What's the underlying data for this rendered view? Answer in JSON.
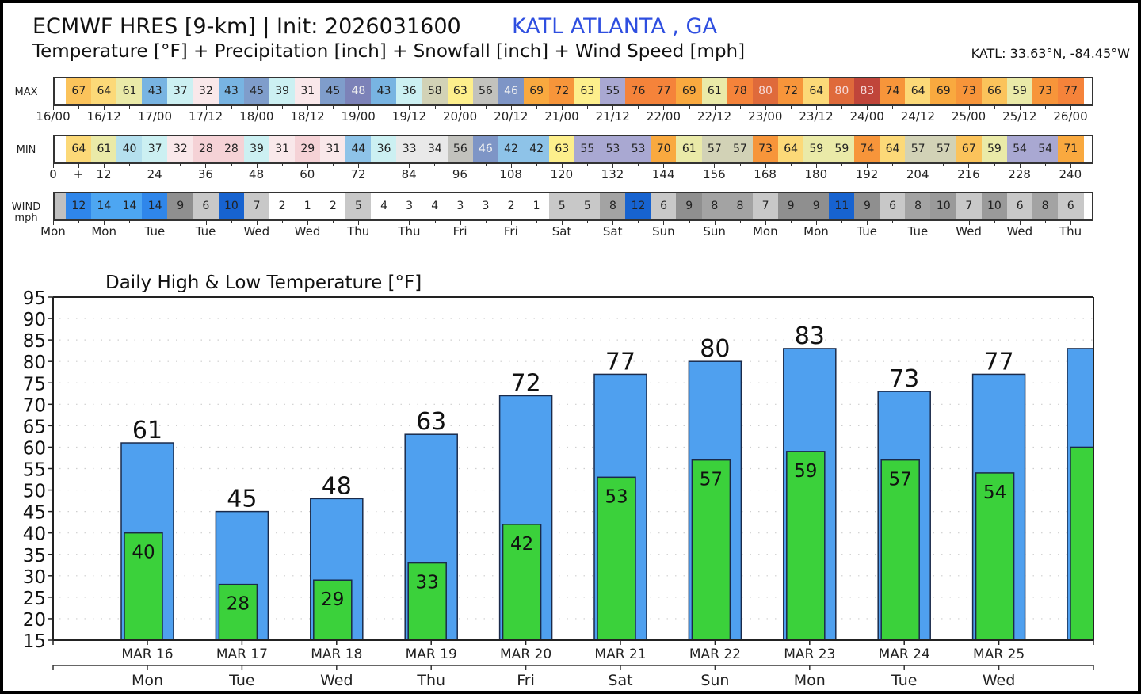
{
  "header": {
    "title": "ECMWF HRES [9-km] | Init: 2026031600",
    "location": "KATL ATLANTA      , GA",
    "subtitle": "Temperature [°F] + Precipitation [inch] + Snowfall [inch] + Wind Speed [mph]",
    "coords": "KATL: 33.63°N, -84.45°W",
    "location_color": "#2f4fe0"
  },
  "max_strip": {
    "label": "MAX",
    "values": [
      67,
      64,
      61,
      43,
      37,
      32,
      43,
      45,
      39,
      31,
      45,
      48,
      43,
      36,
      58,
      63,
      56,
      46,
      69,
      72,
      63,
      55,
      76,
      77,
      69,
      61,
      78,
      80,
      72,
      64,
      80,
      83,
      74,
      64,
      69,
      73,
      66,
      59,
      73,
      77
    ],
    "ticks": [
      "16/00",
      "16/12",
      "17/00",
      "17/12",
      "18/00",
      "18/12",
      "19/00",
      "19/12",
      "20/00",
      "20/12",
      "21/00",
      "21/12",
      "22/00",
      "22/12",
      "23/00",
      "23/12",
      "24/00",
      "24/12",
      "25/00",
      "25/12",
      "26/00"
    ]
  },
  "min_strip": {
    "label": "MIN",
    "values": [
      64,
      61,
      40,
      37,
      32,
      28,
      28,
      39,
      31,
      29,
      31,
      44,
      36,
      33,
      34,
      56,
      46,
      42,
      42,
      63,
      55,
      53,
      53,
      70,
      61,
      57,
      57,
      73,
      64,
      59,
      59,
      74,
      64,
      57,
      57,
      67,
      59,
      54,
      54,
      71
    ],
    "ticks": [
      "0",
      "+",
      "12",
      "24",
      "36",
      "48",
      "60",
      "72",
      "84",
      "96",
      "108",
      "120",
      "132",
      "144",
      "156",
      "168",
      "180",
      "192",
      "204",
      "216",
      "228",
      "240"
    ]
  },
  "wind_strip": {
    "label_line1": "WIND",
    "label_line2": "mph",
    "values": [
      12,
      14,
      14,
      14,
      9,
      6,
      10,
      7,
      2,
      1,
      2,
      5,
      4,
      3,
      4,
      3,
      3,
      2,
      1,
      5,
      5,
      8,
      12,
      6,
      9,
      8,
      8,
      7,
      9,
      9,
      11,
      9,
      6,
      8,
      10,
      7,
      10,
      6,
      8,
      6
    ],
    "ticks": [
      "Mon",
      "Mon",
      "Tue",
      "Tue",
      "Wed",
      "Wed",
      "Thu",
      "Thu",
      "Fri",
      "Fri",
      "Sat",
      "Sat",
      "Sun",
      "Sun",
      "Mon",
      "Mon",
      "Tue",
      "Tue",
      "Wed",
      "Wed",
      "Thu"
    ]
  },
  "chart_data": {
    "type": "bar",
    "title": "Daily High & Low Temperature [°F]",
    "xlabel": "",
    "ylabel": "",
    "ylim": [
      15,
      95
    ],
    "yticks": [
      95,
      90,
      85,
      80,
      75,
      70,
      65,
      60,
      55,
      50,
      45,
      40,
      35,
      30,
      25,
      20,
      15
    ],
    "grid": true,
    "categories": [
      "MAR 16",
      "MAR 17",
      "MAR 18",
      "MAR 19",
      "MAR 20",
      "MAR 21",
      "MAR 22",
      "MAR 23",
      "MAR 24",
      "MAR 25",
      ""
    ],
    "weekdays": [
      "Mon",
      "Tue",
      "Wed",
      "Thu",
      "Fri",
      "Sat",
      "Sun",
      "Mon",
      "Tue",
      "Wed",
      ""
    ],
    "series": [
      {
        "name": "High",
        "color": "#4fa0ef",
        "values": [
          61,
          45,
          48,
          63,
          72,
          77,
          80,
          83,
          73,
          77,
          83
        ]
      },
      {
        "name": "Low",
        "color": "#3bd13b",
        "values": [
          40,
          28,
          29,
          33,
          42,
          53,
          57,
          59,
          57,
          54,
          60
        ]
      }
    ],
    "labeled_count": 10
  },
  "colors": {
    "wind_gray_light": "#c8c8c8",
    "wind_gray_mid": "#a9a9a9",
    "wind_gray_dark": "#8c8c8c"
  }
}
